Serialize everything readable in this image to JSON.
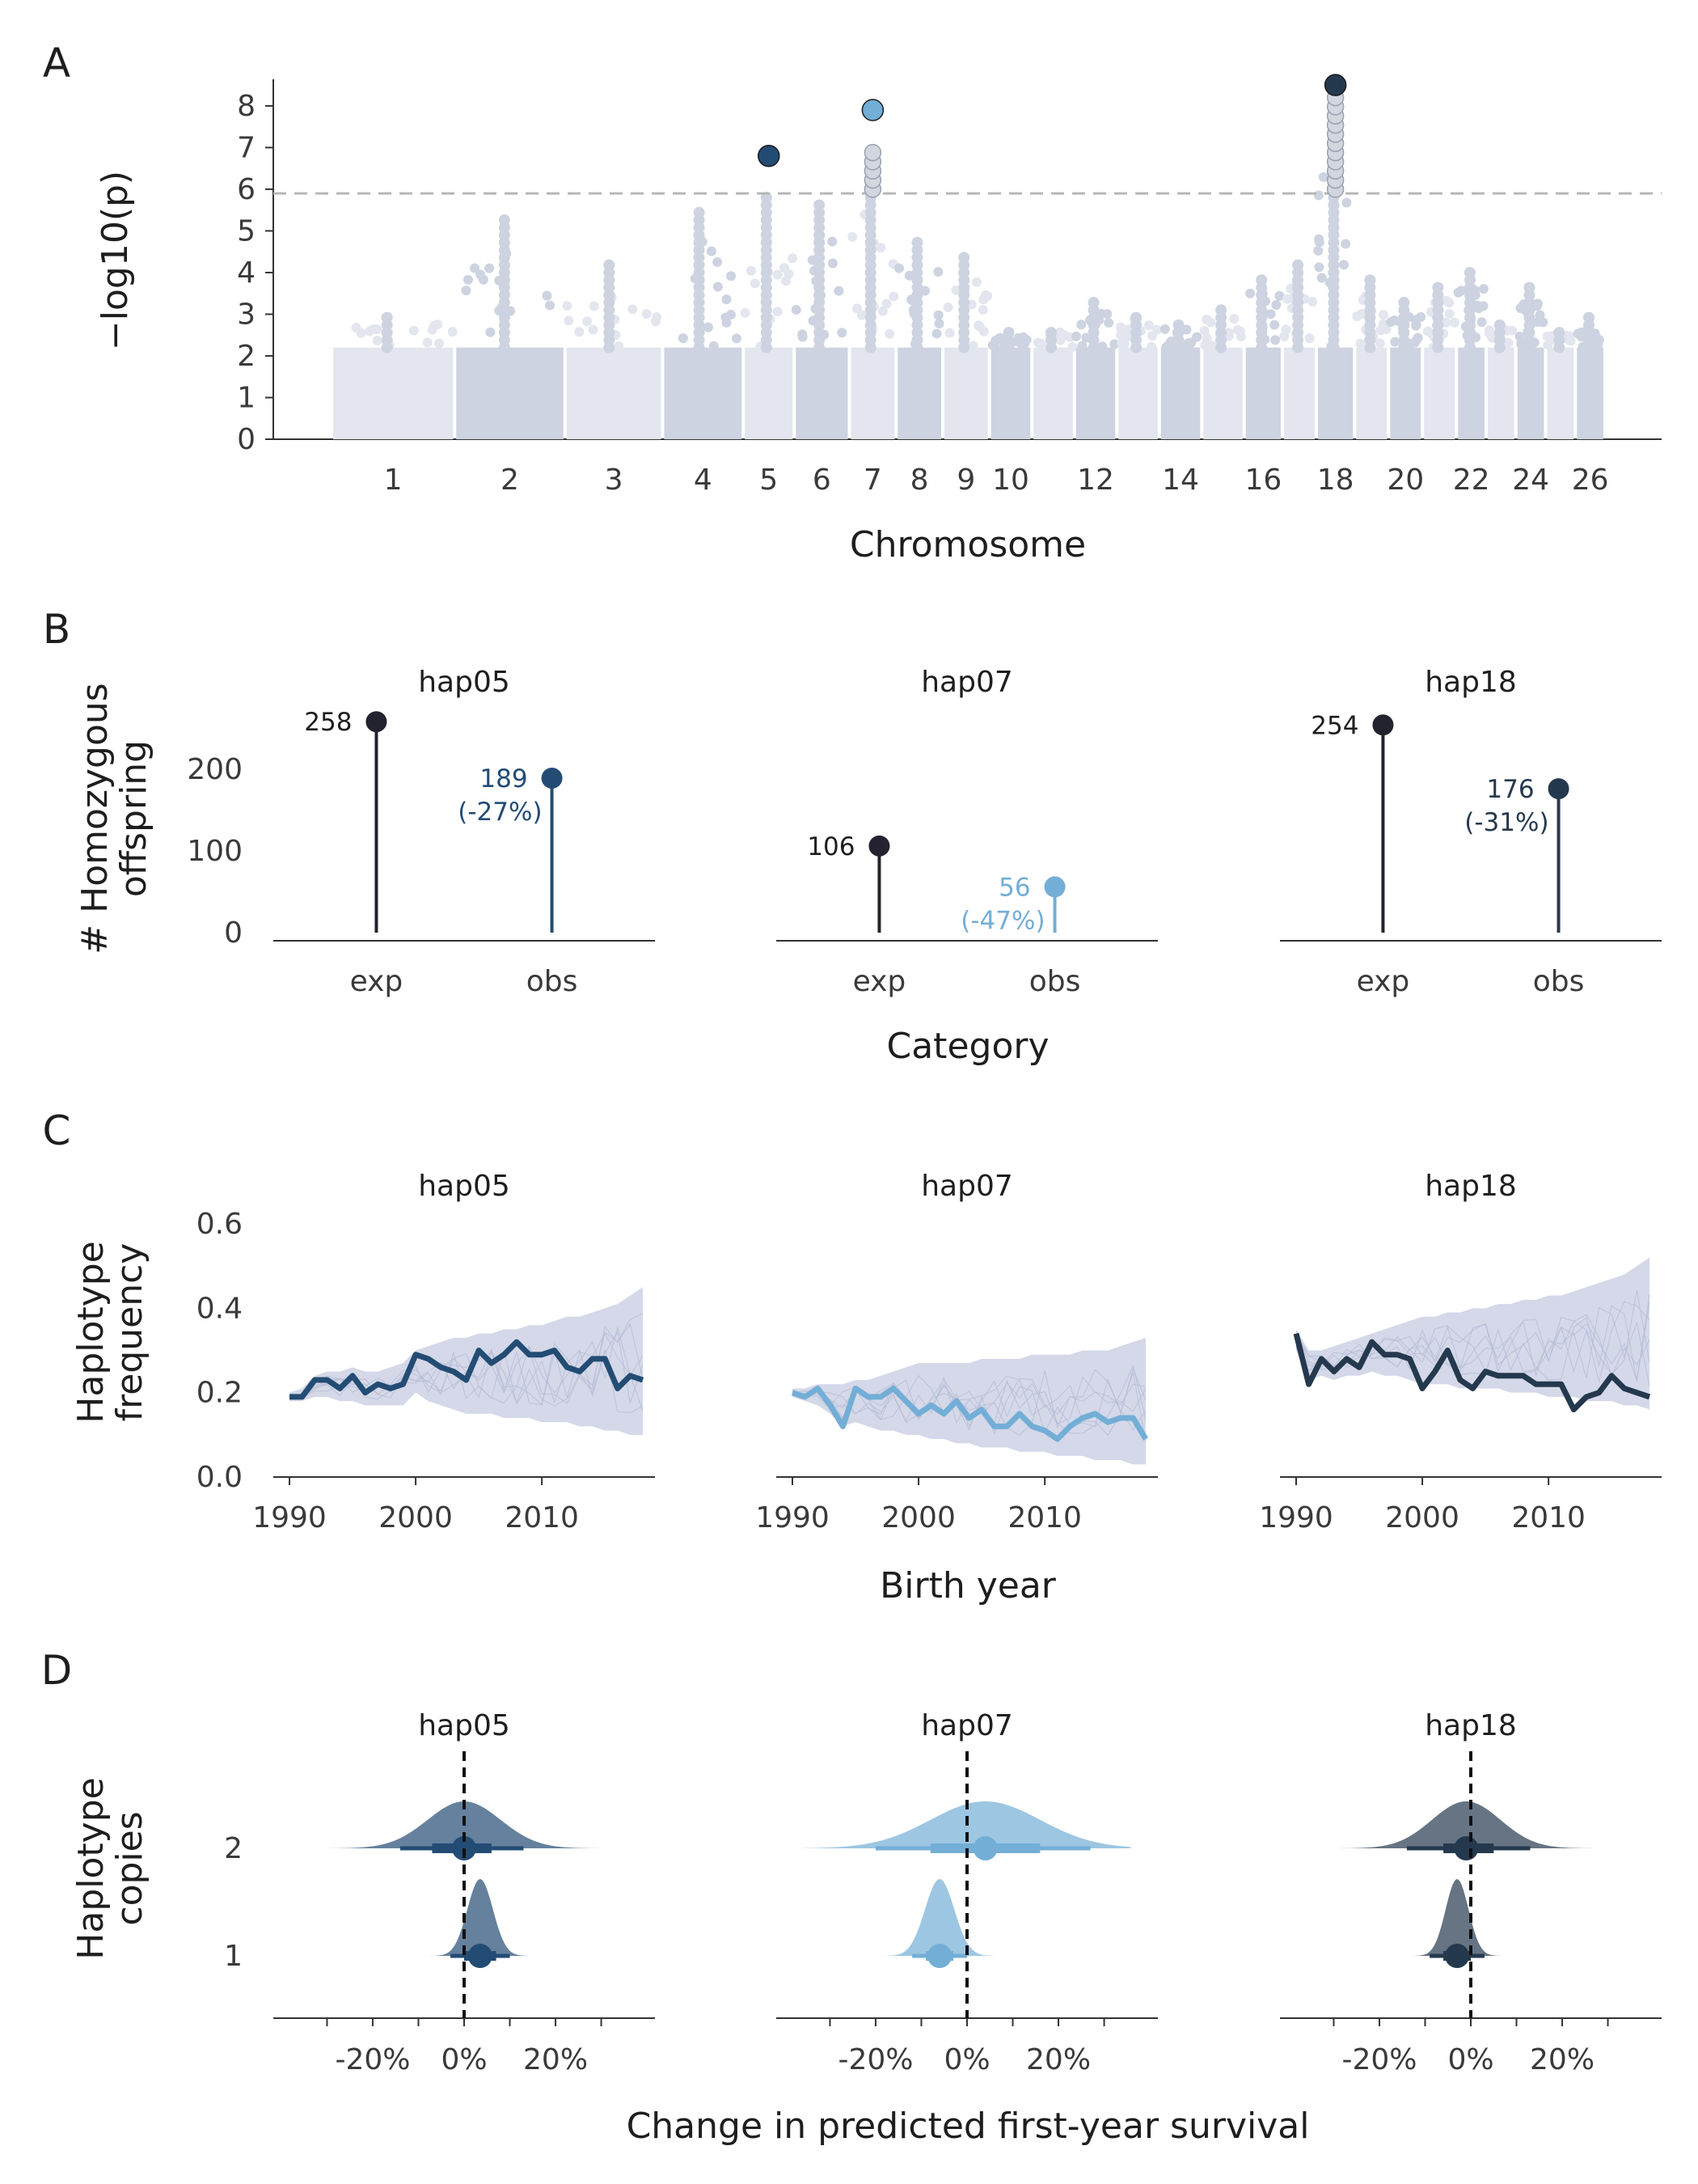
{
  "colors": {
    "hap05": "#234c74",
    "hap07": "#73aed6",
    "hap18": "#25394e",
    "exp": "#23232f",
    "sig_grey": "#d3d6de",
    "chrom_dark": "#cdd3e0",
    "chrom_light": "#e3e6ee",
    "sim": "#c6cbe0",
    "threshold": "#b7b7b7",
    "axis": "#333333"
  },
  "chart_data": [
    {
      "panel": "A",
      "type": "scatter",
      "kind": "manhattan",
      "ylabel": "−log10(p)",
      "xlabel": "Chromosome",
      "ylim": [
        0,
        8.6
      ],
      "yticks": [
        0,
        1,
        2,
        3,
        4,
        5,
        6,
        7,
        8
      ],
      "threshold": 5.9,
      "x_tick_labels": [
        "1",
        "2",
        "3",
        "4",
        "5",
        "6",
        "7",
        "8",
        "9",
        "10",
        "12",
        "14",
        "16",
        "18",
        "20",
        "22",
        "24",
        "26"
      ],
      "chromosomes": [
        {
          "chr": 1,
          "peak": 3.0
        },
        {
          "chr": 2,
          "peak": 5.3
        },
        {
          "chr": 3,
          "peak": 4.2
        },
        {
          "chr": 4,
          "peak": 5.6
        },
        {
          "chr": 5,
          "peak": 5.8
        },
        {
          "chr": 6,
          "peak": 5.7
        },
        {
          "chr": 7,
          "peak": 6.8
        },
        {
          "chr": 8,
          "peak": 4.8
        },
        {
          "chr": 9,
          "peak": 4.5
        },
        {
          "chr": 10,
          "peak": 2.6
        },
        {
          "chr": 11,
          "peak": 2.7
        },
        {
          "chr": 12,
          "peak": 3.3
        },
        {
          "chr": 13,
          "peak": 3.1
        },
        {
          "chr": 14,
          "peak": 2.9
        },
        {
          "chr": 15,
          "peak": 3.2
        },
        {
          "chr": 16,
          "peak": 4.0
        },
        {
          "chr": 17,
          "peak": 4.3
        },
        {
          "chr": 18,
          "peak": 8.0
        },
        {
          "chr": 19,
          "peak": 4.0
        },
        {
          "chr": 20,
          "peak": 3.3
        },
        {
          "chr": 21,
          "peak": 3.8
        },
        {
          "chr": 22,
          "peak": 4.1
        },
        {
          "chr": 23,
          "peak": 2.8
        },
        {
          "chr": 24,
          "peak": 3.7
        },
        {
          "chr": 25,
          "peak": 2.6
        },
        {
          "chr": 26,
          "peak": 3.1
        }
      ],
      "lead_snps": [
        {
          "chr": 5,
          "neglog10p": 6.8,
          "haplotype": "hap05"
        },
        {
          "chr": 7,
          "neglog10p": 7.9,
          "haplotype": "hap07"
        },
        {
          "chr": 18,
          "neglog10p": 8.5,
          "haplotype": "hap18"
        }
      ]
    },
    {
      "panel": "B",
      "type": "lollipop",
      "ylabel": "# Homozygous offspring",
      "xlabel": "Category",
      "categories": [
        "exp",
        "obs"
      ],
      "ylim": [
        0,
        280
      ],
      "yticks": [
        0,
        100,
        200
      ],
      "facets": [
        {
          "name": "hap05",
          "exp": 258,
          "obs": 189,
          "exp_label": "258",
          "obs_label": "189",
          "obs_pct": "(-27%)"
        },
        {
          "name": "hap07",
          "exp": 106,
          "obs": 56,
          "exp_label": "106",
          "obs_label": "56",
          "obs_pct": "(-47%)"
        },
        {
          "name": "hap18",
          "exp": 254,
          "obs": 176,
          "exp_label": "254",
          "obs_label": "176",
          "obs_pct": "(-31%)"
        }
      ]
    },
    {
      "panel": "C",
      "type": "line",
      "ylabel": "Haplotype frequency",
      "xlabel": "Birth year",
      "ylim": [
        0,
        0.6
      ],
      "yticks": [
        "0.0",
        "0.2",
        "0.4",
        "0.6"
      ],
      "xticks": [
        1990,
        2000,
        2010
      ],
      "x": [
        1990,
        1991,
        1992,
        1993,
        1994,
        1995,
        1996,
        1997,
        1998,
        1999,
        2000,
        2001,
        2002,
        2003,
        2004,
        2005,
        2006,
        2007,
        2008,
        2009,
        2010,
        2011,
        2012,
        2013,
        2014,
        2015,
        2016,
        2017,
        2018
      ],
      "facets": [
        {
          "name": "hap05",
          "observed": [
            0.19,
            0.19,
            0.23,
            0.23,
            0.21,
            0.24,
            0.2,
            0.22,
            0.21,
            0.22,
            0.29,
            0.28,
            0.26,
            0.25,
            0.23,
            0.3,
            0.27,
            0.29,
            0.32,
            0.29,
            0.29,
            0.3,
            0.26,
            0.25,
            0.28,
            0.28,
            0.21,
            0.24,
            0.23
          ],
          "sim_lo": [
            0.18,
            0.18,
            0.19,
            0.19,
            0.18,
            0.18,
            0.17,
            0.17,
            0.17,
            0.17,
            0.2,
            0.18,
            0.17,
            0.16,
            0.15,
            0.15,
            0.15,
            0.14,
            0.14,
            0.14,
            0.13,
            0.13,
            0.13,
            0.12,
            0.12,
            0.11,
            0.11,
            0.1,
            0.1
          ],
          "sim_hi": [
            0.2,
            0.21,
            0.24,
            0.25,
            0.25,
            0.26,
            0.25,
            0.25,
            0.26,
            0.27,
            0.3,
            0.31,
            0.32,
            0.33,
            0.33,
            0.34,
            0.34,
            0.35,
            0.35,
            0.36,
            0.36,
            0.37,
            0.38,
            0.38,
            0.39,
            0.4,
            0.41,
            0.43,
            0.45
          ]
        },
        {
          "name": "hap07",
          "observed": [
            0.2,
            0.19,
            0.21,
            0.17,
            0.12,
            0.21,
            0.19,
            0.19,
            0.21,
            0.18,
            0.15,
            0.17,
            0.15,
            0.18,
            0.14,
            0.16,
            0.12,
            0.12,
            0.15,
            0.12,
            0.11,
            0.09,
            0.12,
            0.14,
            0.15,
            0.13,
            0.14,
            0.14,
            0.09
          ],
          "sim_lo": [
            0.19,
            0.18,
            0.17,
            0.15,
            0.12,
            0.13,
            0.12,
            0.11,
            0.11,
            0.1,
            0.1,
            0.09,
            0.09,
            0.08,
            0.08,
            0.07,
            0.07,
            0.07,
            0.06,
            0.06,
            0.06,
            0.05,
            0.05,
            0.05,
            0.04,
            0.04,
            0.04,
            0.03,
            0.03
          ],
          "sim_hi": [
            0.21,
            0.21,
            0.22,
            0.22,
            0.22,
            0.23,
            0.23,
            0.24,
            0.25,
            0.26,
            0.27,
            0.27,
            0.27,
            0.27,
            0.27,
            0.28,
            0.28,
            0.28,
            0.28,
            0.29,
            0.29,
            0.29,
            0.29,
            0.3,
            0.3,
            0.3,
            0.31,
            0.32,
            0.33
          ]
        },
        {
          "name": "hap18",
          "observed": [
            0.34,
            0.22,
            0.28,
            0.25,
            0.28,
            0.26,
            0.32,
            0.29,
            0.29,
            0.28,
            0.21,
            0.25,
            0.3,
            0.23,
            0.21,
            0.25,
            0.24,
            0.24,
            0.24,
            0.22,
            0.22,
            0.22,
            0.16,
            0.19,
            0.2,
            0.24,
            0.21,
            0.2,
            0.19
          ],
          "sim_lo": [
            0.3,
            0.23,
            0.24,
            0.23,
            0.24,
            0.24,
            0.25,
            0.24,
            0.24,
            0.23,
            0.22,
            0.22,
            0.22,
            0.21,
            0.21,
            0.21,
            0.21,
            0.2,
            0.2,
            0.2,
            0.19,
            0.19,
            0.19,
            0.18,
            0.18,
            0.18,
            0.17,
            0.17,
            0.16
          ],
          "sim_hi": [
            0.35,
            0.3,
            0.3,
            0.31,
            0.32,
            0.33,
            0.34,
            0.35,
            0.36,
            0.37,
            0.38,
            0.38,
            0.39,
            0.39,
            0.4,
            0.4,
            0.41,
            0.41,
            0.42,
            0.42,
            0.43,
            0.43,
            0.44,
            0.45,
            0.46,
            0.47,
            0.48,
            0.5,
            0.52
          ]
        }
      ]
    },
    {
      "panel": "D",
      "type": "halfeye",
      "ylabel": "Haplotype copies",
      "xlabel": "Change in predicted first-year survival",
      "xlim": [
        -0.38,
        0.38
      ],
      "xticks": [
        -0.2,
        0,
        0.2
      ],
      "xtick_labels": [
        "-20%",
        "0%",
        "20%"
      ],
      "categories": [
        "2",
        "1"
      ],
      "facets": [
        {
          "name": "hap05",
          "copies": [
            {
              "copies": "2",
              "median": 0.0,
              "inner": [
                -0.07,
                0.06
              ],
              "outer": [
                -0.14,
                0.13
              ],
              "sd": 0.08
            },
            {
              "copies": "1",
              "median": 0.035,
              "inner": [
                0.0,
                0.07
              ],
              "outer": [
                -0.03,
                0.1
              ],
              "sd": 0.028
            }
          ]
        },
        {
          "name": "hap07",
          "copies": [
            {
              "copies": "2",
              "median": 0.04,
              "inner": [
                -0.08,
                0.16
              ],
              "outer": [
                -0.2,
                0.27
              ],
              "sd": 0.12
            },
            {
              "copies": "1",
              "median": -0.06,
              "inner": [
                -0.09,
                -0.03
              ],
              "outer": [
                -0.12,
                0.0
              ],
              "sd": 0.032
            }
          ]
        },
        {
          "name": "hap18",
          "copies": [
            {
              "copies": "2",
              "median": -0.01,
              "inner": [
                -0.06,
                0.05
              ],
              "outer": [
                -0.14,
                0.13
              ],
              "sd": 0.075
            },
            {
              "copies": "1",
              "median": -0.03,
              "inner": [
                -0.06,
                0.0
              ],
              "outer": [
                -0.09,
                0.03
              ],
              "sd": 0.025
            }
          ]
        }
      ]
    }
  ]
}
